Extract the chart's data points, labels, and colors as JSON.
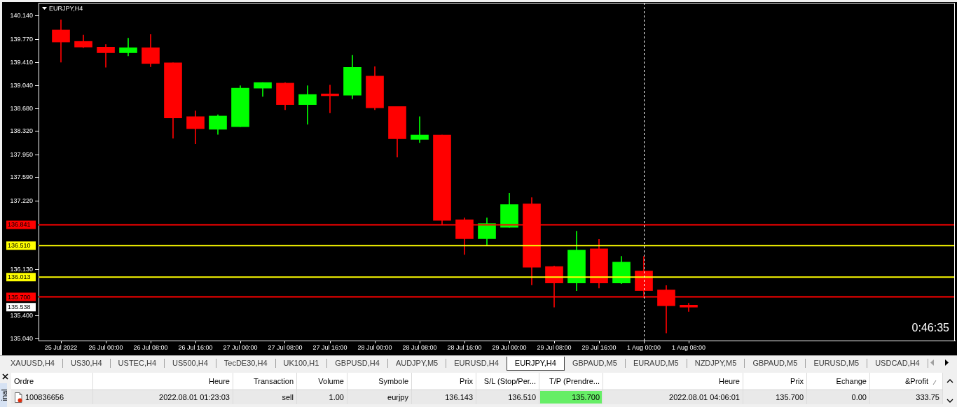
{
  "chart_data": [
    {
      "type": "candlestick",
      "title": "EURJPY,H4",
      "categories": [
        "25 Jul 2022",
        null,
        "26 Jul 00:00",
        null,
        "26 Jul 08:00",
        null,
        "26 Jul 16:00",
        null,
        "27 Jul 00:00",
        null,
        "27 Jul 08:00",
        null,
        "27 Jul 16:00",
        null,
        "28 Jul 00:00",
        null,
        "28 Jul 08:00",
        null,
        "28 Jul 16:00",
        null,
        "29 Jul 00:00",
        null,
        "29 Jul 08:00",
        null,
        "29 Jul 16:00",
        null,
        "1 Aug 00:00",
        null,
        "1 Aug 08:00"
      ],
      "ohlc": [
        [
          139.92,
          140.08,
          139.41,
          139.73
        ],
        [
          139.74,
          139.84,
          139.64,
          139.65
        ],
        [
          139.65,
          139.69,
          139.33,
          139.56
        ],
        [
          139.56,
          139.79,
          139.51,
          139.64
        ],
        [
          139.64,
          139.85,
          139.34,
          139.39
        ],
        [
          139.4,
          139.4,
          138.21,
          138.53
        ],
        [
          138.55,
          138.64,
          138.12,
          138.36
        ],
        [
          138.35,
          138.58,
          138.27,
          138.56
        ],
        [
          138.39,
          139.04,
          138.39,
          139.0
        ],
        [
          139.0,
          139.09,
          138.87,
          139.09
        ],
        [
          139.08,
          139.09,
          138.66,
          138.74
        ],
        [
          138.74,
          139.04,
          138.43,
          138.9
        ],
        [
          138.91,
          139.05,
          138.61,
          138.88
        ],
        [
          138.89,
          139.52,
          138.83,
          139.33
        ],
        [
          139.19,
          139.34,
          138.66,
          138.69
        ],
        [
          138.71,
          138.71,
          137.91,
          138.2
        ],
        [
          138.19,
          138.55,
          138.14,
          138.26
        ],
        [
          138.26,
          138.26,
          136.85,
          136.91
        ],
        [
          136.92,
          136.95,
          136.37,
          136.62
        ],
        [
          136.62,
          136.95,
          136.51,
          136.86
        ],
        [
          136.8,
          137.34,
          136.8,
          137.16
        ],
        [
          137.17,
          137.27,
          135.89,
          136.17
        ],
        [
          136.18,
          136.19,
          135.54,
          135.92
        ],
        [
          135.92,
          136.74,
          135.8,
          136.44
        ],
        [
          136.46,
          136.61,
          135.84,
          135.92
        ],
        [
          135.92,
          136.34,
          135.91,
          136.25
        ],
        [
          136.11,
          136.34,
          135.69,
          135.8
        ],
        [
          135.81,
          135.88,
          135.13,
          135.56
        ],
        [
          135.57,
          135.6,
          135.47,
          135.538
        ]
      ],
      "colors": [
        "#ff0000",
        "#ff0000",
        "#ff0000",
        "#00ff00",
        "#ff0000",
        "#ff0000",
        "#ff0000",
        "#00ff00",
        "#00ff00",
        "#00ff00",
        "#ff0000",
        "#00ff00",
        "#ff0000",
        "#00ff00",
        "#ff0000",
        "#ff0000",
        "#00ff00",
        "#ff0000",
        "#ff0000",
        "#00ff00",
        "#00ff00",
        "#ff0000",
        "#ff0000",
        "#00ff00",
        "#ff0000",
        "#00ff00",
        "#ff0000",
        "#ff0000",
        "#ff0000"
      ],
      "ylim": [
        135.01,
        140.35
      ],
      "yticks": [
        {
          "value": 135.04,
          "label": "135.040"
        },
        {
          "value": 135.4,
          "label": "135.400"
        },
        {
          "value": 136.13,
          "label": "136.130"
        },
        {
          "value": 137.22,
          "label": "137.220"
        },
        {
          "value": 137.59,
          "label": "137.590"
        },
        {
          "value": 137.95,
          "label": "137.950"
        },
        {
          "value": 138.32,
          "label": "138.320"
        },
        {
          "value": 138.68,
          "label": "138.680"
        },
        {
          "value": 139.04,
          "label": "139.040"
        },
        {
          "value": 139.41,
          "label": "139.410"
        },
        {
          "value": 139.77,
          "label": "139.770"
        },
        {
          "value": 140.14,
          "label": "140.140"
        }
      ],
      "grid": false,
      "ref_lines": [
        {
          "axis": "y",
          "value": 136.841,
          "label": "136.841",
          "color": "#ff0000"
        },
        {
          "axis": "y",
          "value": 136.51,
          "label": "136.510",
          "color": "#ffff00"
        },
        {
          "axis": "y",
          "value": 136.013,
          "label": "136.013",
          "color": "#ffff00"
        },
        {
          "axis": "y",
          "value": 135.7,
          "label": "135.700",
          "color": "#ff0000"
        },
        {
          "axis": "x",
          "value": "1 Aug 00:00",
          "color": "#ffffff",
          "line_style": "dashed"
        }
      ],
      "annotations": [
        "135.538",
        "0:46:35"
      ]
    },
    {
      "type": "other",
      "categories": [
        "XAUUSD,H4",
        "US30,H4",
        "USTEC,H4",
        "US500,H4",
        "TecDE30,H4",
        "UK100,H1",
        "GBPUSD,H4",
        "AUDJPY,M5",
        "EURUSD,H4",
        "EURJPY,H4",
        "GBPAUD,M5",
        "EURAUD,M5",
        "NZDJPY,M5",
        "GBPAUD,M5",
        "EURUSD,M5",
        "USDCAD,H4"
      ],
      "colors": [
        "#f0f0f0",
        "#f0f0f0",
        "#f0f0f0",
        "#f0f0f0",
        "#f0f0f0",
        "#f0f0f0",
        "#f0f0f0",
        "#f0f0f0",
        "#f0f0f0",
        "#ffffff",
        "#f0f0f0",
        "#f0f0f0",
        "#f0f0f0",
        "#f0f0f0",
        "#f0f0f0",
        "#f0f0f0"
      ]
    },
    {
      "type": "other",
      "categories": [
        "Ordre",
        "Heure",
        "Transaction",
        "Volume",
        "Symbole",
        "Prix",
        "S/L (Stop/Per...",
        "T/P (Prendre...",
        "Heure",
        "Prix",
        "Echange",
        "&Profit"
      ],
      "cell_labels": [
        [
          "100836656",
          "2022.08.01 01:23:03",
          "sell",
          "1.00",
          "eurjpy",
          "136.143",
          "136.510",
          "135.700",
          "2022.08.01 04:06:01",
          "135.700",
          "0.00",
          "333.75"
        ]
      ],
      "annotations": [
        "inal"
      ]
    }
  ]
}
